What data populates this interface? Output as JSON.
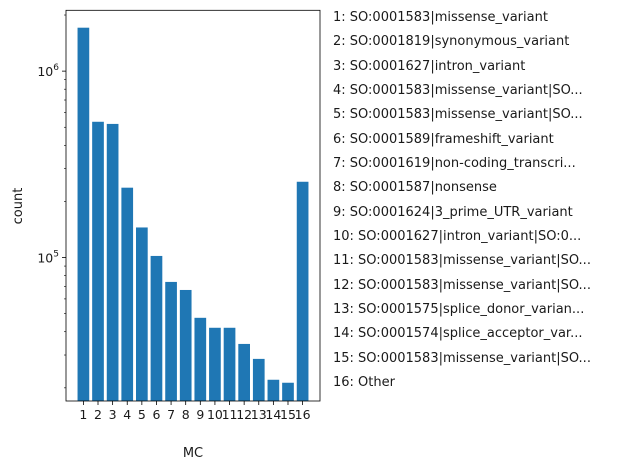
{
  "chart_data": {
    "type": "bar",
    "categories": [
      "1",
      "2",
      "3",
      "4",
      "5",
      "6",
      "7",
      "8",
      "9",
      "10",
      "11",
      "12",
      "13",
      "14",
      "15",
      "16"
    ],
    "values": [
      1710000,
      535000,
      521000,
      237000,
      145000,
      102000,
      74000,
      67000,
      47500,
      42000,
      42000,
      34400,
      28600,
      22100,
      21300,
      255000
    ],
    "xlabel": "MC",
    "ylabel": "count",
    "yscale": "log",
    "ylim": [
      17000,
      2120000
    ],
    "yticks": [
      {
        "value": 100000,
        "base": "10",
        "exp": "5"
      },
      {
        "value": 1000000,
        "base": "10",
        "exp": "6"
      }
    ],
    "grid": false,
    "bar_color": "#1f77b4",
    "legend_position": "right",
    "legend": [
      "1: SO:0001583|missense_variant",
      "2: SO:0001819|synonymous_variant",
      "3: SO:0001627|intron_variant",
      "4: SO:0001583|missense_variant|SO...",
      "5: SO:0001583|missense_variant|SO...",
      "6: SO:0001589|frameshift_variant",
      "7: SO:0001619|non-coding_transcri...",
      "8: SO:0001587|nonsense",
      "9: SO:0001624|3_prime_UTR_variant",
      "10: SO:0001627|intron_variant|SO:0...",
      "11: SO:0001583|missense_variant|SO...",
      "12: SO:0001583|missense_variant|SO...",
      "13: SO:0001575|splice_donor_varian...",
      "14: SO:0001574|splice_acceptor_var...",
      "15: SO:0001583|missense_variant|SO...",
      "16: Other"
    ]
  }
}
